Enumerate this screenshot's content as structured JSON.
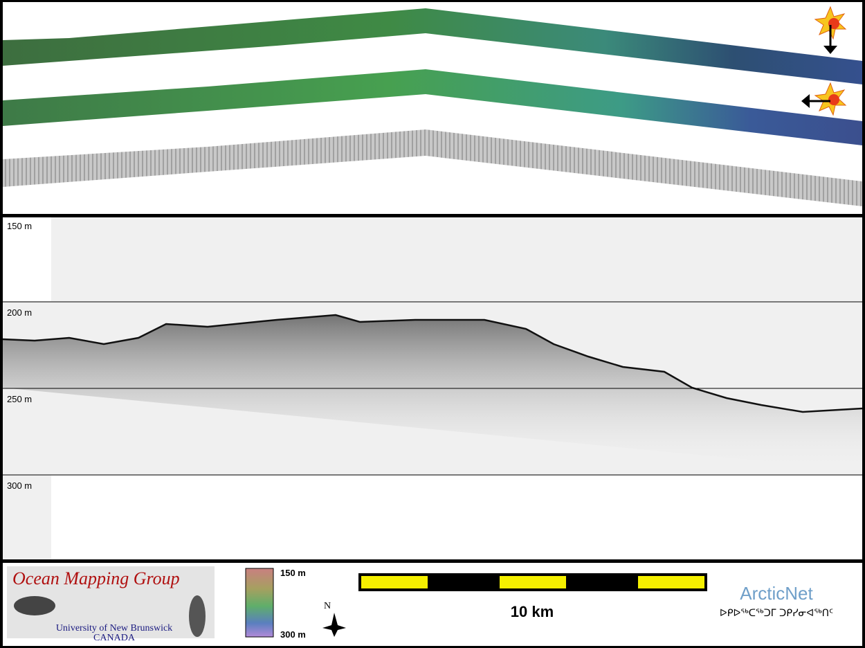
{
  "depth_labels": [
    "150 m",
    "200 m",
    "250 m",
    "300 m"
  ],
  "logo": {
    "title": "Ocean Mapping Group",
    "university": "University of New Brunswick",
    "country": "CANADA"
  },
  "colorbar": {
    "top": "150 m",
    "bottom": "300 m"
  },
  "scale_bar": {
    "label": "10 km"
  },
  "north": "N",
  "partner": {
    "name": "ArcticNet",
    "syllabics": "ᐅᑭᐅᖅᑕᖅᑐᒥ ᑐᑭᓯᓂᐊᖅᑎᑦ"
  }
}
